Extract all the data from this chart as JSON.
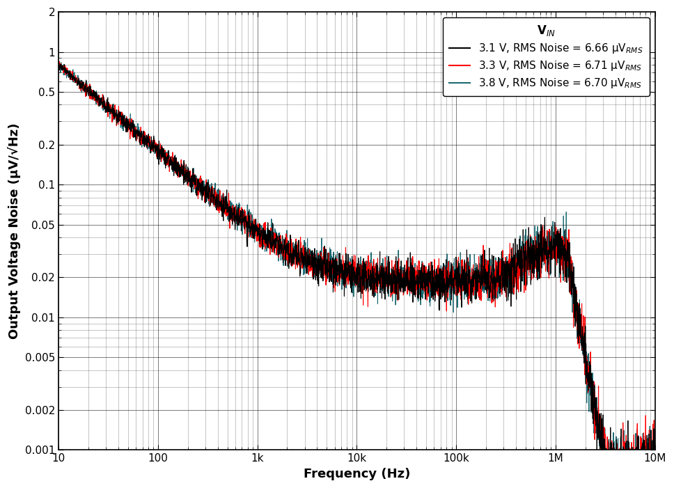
{
  "xlabel": "Frequency (Hz)",
  "ylabel": "Output Voltage Noise (μV/√Hz)",
  "xlim": [
    10,
    10000000.0
  ],
  "ylim": [
    0.001,
    2
  ],
  "series": [
    {
      "label": "3.1 V, RMS Noise = 6.66 μV$_{RMS}$",
      "color": "#000000",
      "zorder": 3,
      "lw": 0.8
    },
    {
      "label": "3.3 V, RMS Noise = 6.71 μV$_{RMS}$",
      "color": "#FF0000",
      "zorder": 2,
      "lw": 0.8
    },
    {
      "label": "3.8 V, RMS Noise = 6.70 μV$_{RMS}$",
      "color": "#1C6B73",
      "zorder": 1,
      "lw": 0.8
    }
  ],
  "xtick_labels": [
    "10",
    "100",
    "1k",
    "10k",
    "100k",
    "1M",
    "10M"
  ],
  "xtick_values": [
    10,
    100,
    1000,
    10000,
    100000,
    1000000,
    10000000
  ],
  "ytick_labels": [
    "0.001",
    "0.002",
    "0.005",
    "0.01",
    "0.02",
    "0.05",
    "0.1",
    "0.2",
    "0.5",
    "1",
    "2"
  ],
  "ytick_values": [
    0.001,
    0.002,
    0.005,
    0.01,
    0.02,
    0.05,
    0.1,
    0.2,
    0.5,
    1,
    2
  ],
  "background_color": "#FFFFFF",
  "grid_color": "#000000",
  "legend_fontsize": 11,
  "axis_fontsize": 13,
  "tick_fontsize": 11,
  "legend_title": "V$_{IN}$"
}
